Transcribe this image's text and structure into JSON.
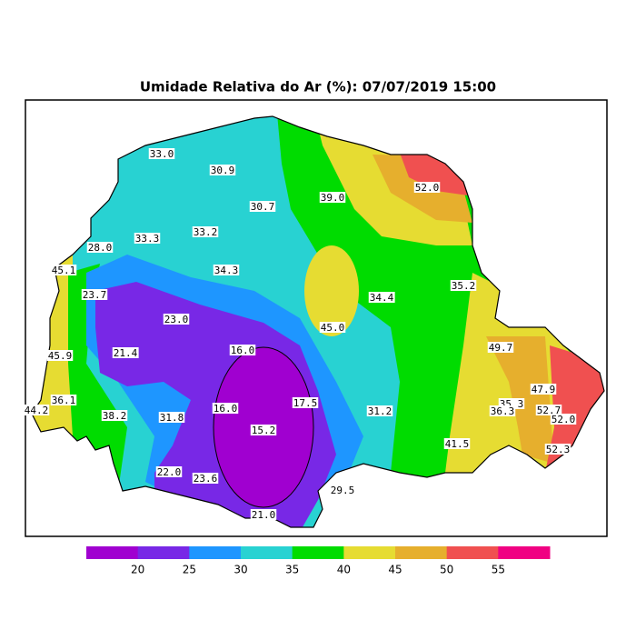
{
  "title": "Umidade Relativa do Ar (%): 07/07/2019 15:00",
  "stations": [
    "33.0",
    "30.9",
    "30.7",
    "39.0",
    "52.0",
    "33.3",
    "33.2",
    "28.0",
    "45.1",
    "34.3",
    "23.7",
    "34.4",
    "35.2",
    "23.0",
    "45.0",
    "21.4",
    "16.0",
    "49.7",
    "45.9",
    "36.1",
    "44.2",
    "38.2",
    "31.8",
    "16.0",
    "17.5",
    "31.2",
    "15.2",
    "35.3",
    "36.3",
    "47.9",
    "52.7",
    "52.0",
    "41.5",
    "52.3",
    "22.0",
    "23.6",
    "29.5",
    "21.0"
  ],
  "colorbar": {
    "colors": [
      "#a000d0",
      "#7828e6",
      "#1e96ff",
      "#28d2d2",
      "#00dc00",
      "#e6dc32",
      "#e6af2d",
      "#f05050",
      "#f00082"
    ],
    "ticks": [
      "20",
      "25",
      "30",
      "35",
      "40",
      "45",
      "50",
      "55"
    ]
  }
}
